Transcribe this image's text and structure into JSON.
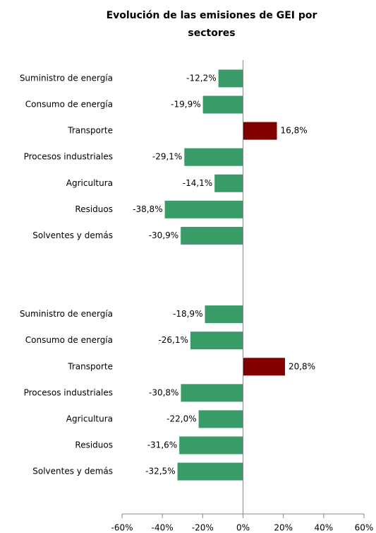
{
  "chart_data": {
    "type": "barh",
    "title": "Evolución de las emisiones de GEI por sectores",
    "categories": [
      "Suministro de energía",
      "Consumo de energía",
      "Transporte",
      "Procesos industriales",
      "Agricultura",
      "Residuos",
      "Solventes y demás",
      null,
      null,
      "Suministro de energía",
      "Consumo de energía",
      "Transporte",
      "Procesos industriales",
      "Agricultura",
      "Residuos",
      "Solventes y demás"
    ],
    "values": [
      -12.2,
      -19.9,
      16.8,
      -29.1,
      -14.1,
      -38.8,
      -30.9,
      null,
      null,
      -18.9,
      -26.1,
      20.8,
      -30.8,
      -22.0,
      -31.6,
      -32.5
    ],
    "value_labels": [
      "-12,2%",
      "-19,9%",
      "16,8%",
      "-29,1%",
      "-14,1%",
      "-38,8%",
      "-30,9%",
      null,
      null,
      "-18,9%",
      "-26,1%",
      "20,8%",
      "-30,8%",
      "-22,0%",
      "-31,6%",
      "-32,5%"
    ],
    "colors": [
      "#389b68",
      "#389b68",
      "#800000",
      "#389b68",
      "#389b68",
      "#389b68",
      "#389b68",
      null,
      null,
      "#389b68",
      "#389b68",
      "#800000",
      "#389b68",
      "#389b68",
      "#389b68",
      "#389b68"
    ],
    "xlim": [
      -60,
      60
    ],
    "xticks": [
      {
        "value": -60,
        "label": "-60%"
      },
      {
        "value": -40,
        "label": "-40%"
      },
      {
        "value": -20,
        "label": "-20%"
      },
      {
        "value": 0,
        "label": "0%"
      },
      {
        "value": 20,
        "label": "20%"
      },
      {
        "value": 40,
        "label": "40%"
      },
      {
        "value": 60,
        "label": "60%"
      }
    ]
  }
}
